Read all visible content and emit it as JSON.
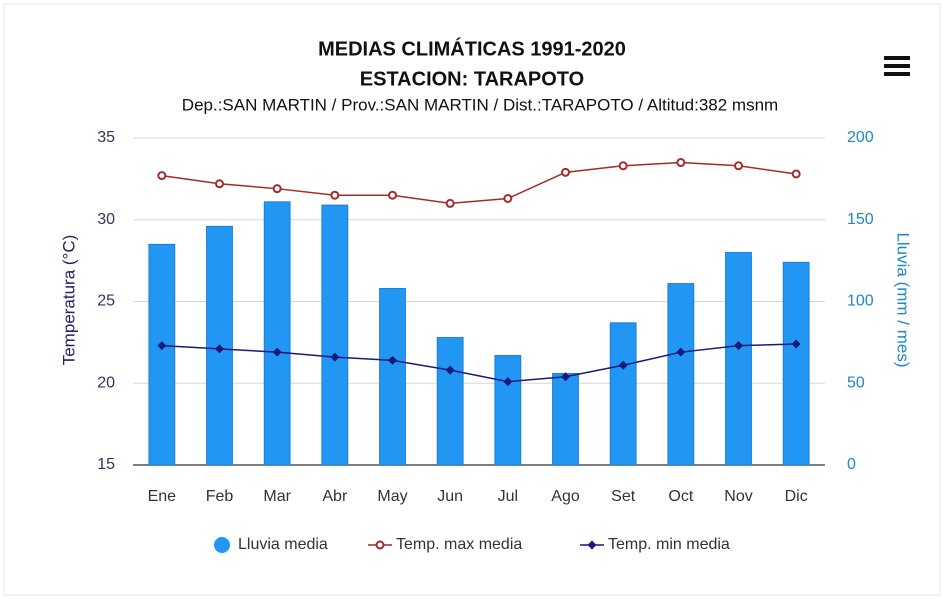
{
  "chart_data": {
    "type": "combo",
    "title": "MEDIAS CLIMÁTICAS 1991-2020",
    "subtitle": [
      "ESTACION: TARAPOTO",
      "Dep.:SAN MARTIN / Prov.:SAN MARTIN / Dist.:TARAPOTO / Altitud:382 msnm"
    ],
    "ylabel": "Temperatura (°C)",
    "y2label": "Lluvia (mm / mes)",
    "categories": [
      "Ene",
      "Feb",
      "Mar",
      "Abr",
      "May",
      "Jun",
      "Jul",
      "Ago",
      "Set",
      "Oct",
      "Nov",
      "Dic"
    ],
    "ylim": [
      15,
      35
    ],
    "yticks": [
      15,
      20,
      25,
      30,
      35
    ],
    "y2lim": [
      0,
      200
    ],
    "y2ticks": [
      0,
      50,
      100,
      150,
      200
    ],
    "grid": true,
    "legend": "bottom",
    "series": [
      {
        "name": "Lluvia media",
        "type": "bar",
        "axis": "y2",
        "color": "#2196f3",
        "values": [
          135,
          146,
          161,
          159,
          108,
          78,
          67,
          56,
          87,
          111,
          130,
          124
        ]
      },
      {
        "name": "Temp. max media",
        "type": "line",
        "marker": "circle",
        "color": "#a52a2a",
        "values": [
          32.7,
          32.2,
          31.9,
          31.5,
          31.5,
          31.0,
          31.3,
          32.9,
          33.3,
          33.5,
          33.3,
          32.8
        ]
      },
      {
        "name": "Temp. min media",
        "type": "line",
        "marker": "diamond",
        "color": "#1a1a7a",
        "values": [
          22.3,
          22.1,
          21.9,
          21.6,
          21.4,
          20.8,
          20.1,
          20.4,
          21.1,
          21.9,
          22.3,
          22.4
        ]
      }
    ]
  }
}
